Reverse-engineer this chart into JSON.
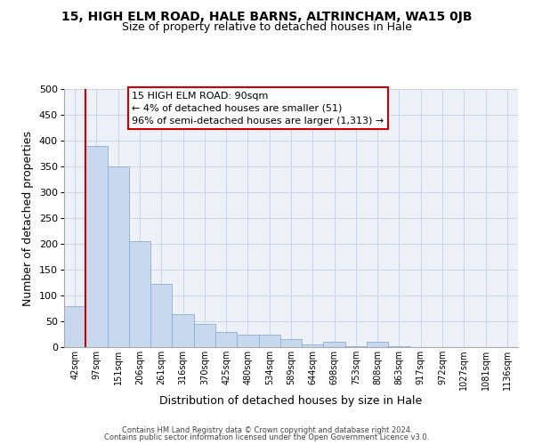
{
  "title": "15, HIGH ELM ROAD, HALE BARNS, ALTRINCHAM, WA15 0JB",
  "subtitle": "Size of property relative to detached houses in Hale",
  "xlabel": "Distribution of detached houses by size in Hale",
  "ylabel": "Number of detached properties",
  "bar_color": "#c8d9ef",
  "bar_edge_color": "#8bafd4",
  "highlight_color": "#cc0000",
  "categories": [
    "42sqm",
    "97sqm",
    "151sqm",
    "206sqm",
    "261sqm",
    "316sqm",
    "370sqm",
    "425sqm",
    "480sqm",
    "534sqm",
    "589sqm",
    "644sqm",
    "698sqm",
    "753sqm",
    "808sqm",
    "863sqm",
    "917sqm",
    "972sqm",
    "1027sqm",
    "1081sqm",
    "1136sqm"
  ],
  "values": [
    80,
    390,
    350,
    205,
    123,
    63,
    45,
    30,
    24,
    25,
    16,
    5,
    10,
    1,
    10,
    1,
    0,
    0,
    0,
    0,
    0
  ],
  "ylim": [
    0,
    500
  ],
  "yticks": [
    0,
    50,
    100,
    150,
    200,
    250,
    300,
    350,
    400,
    450,
    500
  ],
  "highlight_bin_index": 1,
  "annotation_title": "15 HIGH ELM ROAD: 90sqm",
  "annotation_line1": "← 4% of detached houses are smaller (51)",
  "annotation_line2": "96% of semi-detached houses are larger (1,313) →",
  "footer_line1": "Contains HM Land Registry data © Crown copyright and database right 2024.",
  "footer_line2": "Contains public sector information licensed under the Open Government Licence v3.0.",
  "grid_color": "#ccd6e8",
  "bg_color": "#eef2f8"
}
